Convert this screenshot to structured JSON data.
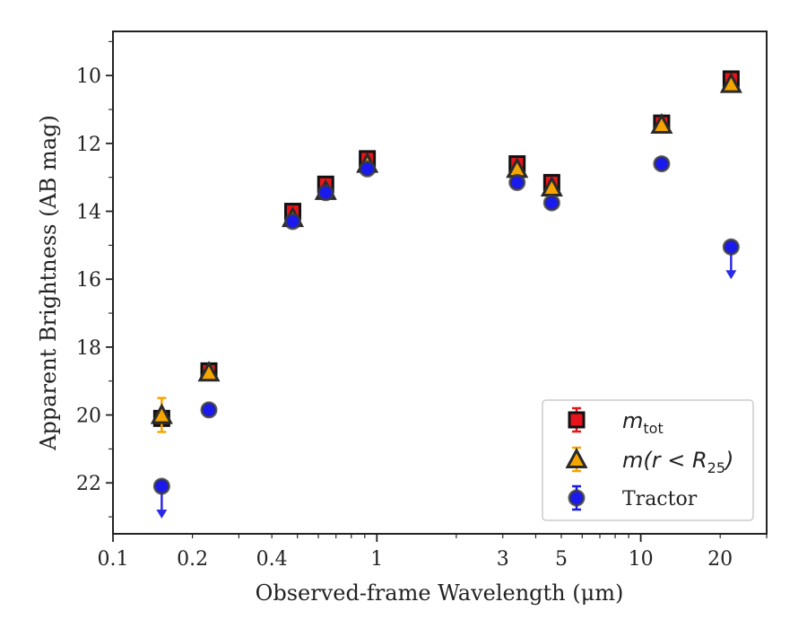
{
  "chart_data": {
    "type": "scatter",
    "xlabel": "Observed-frame Wavelength (μm)",
    "ylabel": "Apparent Brightness (AB mag)",
    "x_scale": "log",
    "y_inverted": true,
    "xlim": [
      0.1,
      30
    ],
    "ylim": [
      8.7,
      23.5
    ],
    "x_ticks": [
      {
        "value": 0.1,
        "label": "0.1"
      },
      {
        "value": 0.2,
        "label": "0.2"
      },
      {
        "value": 0.4,
        "label": "0.4"
      },
      {
        "value": 1,
        "label": "1"
      },
      {
        "value": 3,
        "label": "3"
      },
      {
        "value": 5,
        "label": "5"
      },
      {
        "value": 10,
        "label": "10"
      },
      {
        "value": 20,
        "label": "20"
      }
    ],
    "y_ticks": [
      {
        "value": 10,
        "label": "10"
      },
      {
        "value": 12,
        "label": "12"
      },
      {
        "value": 14,
        "label": "14"
      },
      {
        "value": 16,
        "label": "16"
      },
      {
        "value": 18,
        "label": "18"
      },
      {
        "value": 20,
        "label": "20"
      },
      {
        "value": 22,
        "label": "22"
      }
    ],
    "legend_position": "bottom-right",
    "grid": false,
    "series": [
      {
        "name": "m_tot",
        "legend_prefix": "m",
        "legend_sub": "tot",
        "marker": "square",
        "color": "#e8141b",
        "edge": "#111111",
        "points": [
          {
            "x": 0.153,
            "y": 20.1,
            "err": 0.12
          },
          {
            "x": 0.231,
            "y": 18.7,
            "err": 0.1
          },
          {
            "x": 0.48,
            "y": 14.0,
            "err": 0.05
          },
          {
            "x": 0.64,
            "y": 13.2,
            "err": 0.05
          },
          {
            "x": 0.92,
            "y": 12.45,
            "err": 0.05
          },
          {
            "x": 3.4,
            "y": 12.6,
            "err": 0.05
          },
          {
            "x": 4.6,
            "y": 13.15,
            "err": 0.05
          },
          {
            "x": 12.0,
            "y": 11.4,
            "err": 0.05
          },
          {
            "x": 22.0,
            "y": 10.1,
            "err": 0.05
          }
        ]
      },
      {
        "name": "m(r < R_25)",
        "legend_prefix": "m(r < R",
        "legend_sub": "25",
        "legend_suffix": ")",
        "marker": "triangle",
        "color": "#f5a400",
        "edge": "#2a2a2a",
        "points": [
          {
            "x": 0.153,
            "y": 20.0,
            "err": 0.5
          },
          {
            "x": 0.231,
            "y": 18.75,
            "err": 0.1
          },
          {
            "x": 0.48,
            "y": 14.2,
            "err": 0.05
          },
          {
            "x": 0.64,
            "y": 13.4,
            "err": 0.05
          },
          {
            "x": 0.92,
            "y": 12.6,
            "err": 0.05
          },
          {
            "x": 3.4,
            "y": 12.75,
            "err": 0.05
          },
          {
            "x": 4.6,
            "y": 13.3,
            "err": 0.05
          },
          {
            "x": 12.0,
            "y": 11.45,
            "err": 0.05
          },
          {
            "x": 22.0,
            "y": 10.25,
            "err": 0.05
          }
        ]
      },
      {
        "name": "Tractor",
        "marker": "circle",
        "color": "#1a1aee",
        "edge": "#3a3a3a",
        "points": [
          {
            "x": 0.153,
            "y": 22.1,
            "err": 0.05,
            "upper_limit": true
          },
          {
            "x": 0.231,
            "y": 19.85,
            "err": 0.05
          },
          {
            "x": 0.48,
            "y": 14.3,
            "err": 0.05
          },
          {
            "x": 0.64,
            "y": 13.45,
            "err": 0.05
          },
          {
            "x": 0.92,
            "y": 12.75,
            "err": 0.05
          },
          {
            "x": 3.4,
            "y": 13.15,
            "err": 0.05
          },
          {
            "x": 4.6,
            "y": 13.75,
            "err": 0.05
          },
          {
            "x": 12.0,
            "y": 12.6,
            "err": 0.05
          },
          {
            "x": 22.0,
            "y": 15.05,
            "err": 0.05,
            "upper_limit": true
          }
        ]
      }
    ]
  }
}
